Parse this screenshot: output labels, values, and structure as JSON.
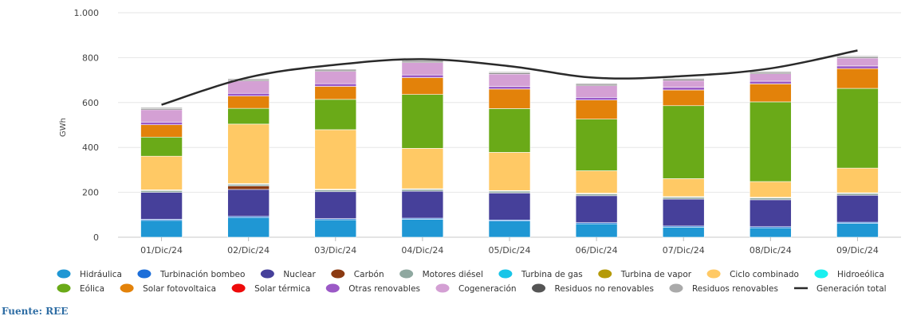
{
  "source_label": "Fuente: REE",
  "chart_data": {
    "type": "bar",
    "stacked": true,
    "ylabel": "GWh",
    "ylim": [
      0,
      1000
    ],
    "yticks": [
      0,
      200,
      400,
      600,
      800,
      1000
    ],
    "ytick_labels": [
      "0",
      "200",
      "400",
      "600",
      "800",
      "1.000"
    ],
    "grid": true,
    "legend_position": "bottom",
    "categories": [
      "01/Dic/24",
      "02/Dic/24",
      "03/Dic/24",
      "04/Dic/24",
      "05/Dic/24",
      "06/Dic/24",
      "07/Dic/24",
      "08/Dic/24",
      "09/Dic/24"
    ],
    "series": [
      {
        "name": "Hidráulica",
        "color": "#1f97d4",
        "values": [
          75,
          88,
          78,
          80,
          72,
          60,
          45,
          42,
          62
        ]
      },
      {
        "name": "Turbinación bombeo",
        "color": "#1c6ed9",
        "values": [
          5,
          5,
          5,
          5,
          5,
          5,
          5,
          5,
          5
        ]
      },
      {
        "name": "Nuclear",
        "color": "#46409a",
        "values": [
          120,
          120,
          120,
          120,
          120,
          120,
          120,
          120,
          120
        ]
      },
      {
        "name": "Carbón",
        "color": "#8b3a12",
        "values": [
          0,
          15,
          0,
          0,
          0,
          0,
          0,
          0,
          0
        ]
      },
      {
        "name": "Motores diésel",
        "color": "#8fa8a0",
        "values": [
          8,
          8,
          8,
          8,
          8,
          8,
          8,
          8,
          8
        ]
      },
      {
        "name": "Turbina de gas",
        "color": "#18c5e8",
        "values": [
          1,
          1,
          1,
          1,
          1,
          1,
          1,
          1,
          1
        ]
      },
      {
        "name": "Turbina de vapor",
        "color": "#b59a08",
        "values": [
          2,
          2,
          2,
          2,
          2,
          2,
          2,
          2,
          2
        ]
      },
      {
        "name": "Ciclo combinado",
        "color": "#ffc965",
        "values": [
          150,
          265,
          265,
          180,
          170,
          100,
          80,
          70,
          110
        ]
      },
      {
        "name": "Hidroeólica",
        "color": "#19f0f0",
        "values": [
          0,
          0,
          0,
          0,
          0,
          0,
          0,
          0,
          0
        ]
      },
      {
        "name": "Eólica",
        "color": "#6aaa18",
        "values": [
          85,
          70,
          135,
          240,
          195,
          230,
          325,
          355,
          355
        ]
      },
      {
        "name": "Solar fotovoltaica",
        "color": "#e3820a",
        "values": [
          55,
          55,
          58,
          75,
          87,
          85,
          70,
          80,
          88
        ]
      },
      {
        "name": "Solar térmica",
        "color": "#ee0a0a",
        "values": [
          0,
          0,
          0,
          0,
          0,
          0,
          0,
          0,
          0
        ]
      },
      {
        "name": "Otras renovables",
        "color": "#9b59c6",
        "values": [
          12,
          12,
          12,
          12,
          12,
          12,
          12,
          12,
          12
        ]
      },
      {
        "name": "Cogeneración",
        "color": "#d4a0d4",
        "values": [
          55,
          55,
          55,
          55,
          55,
          52,
          30,
          33,
          35
        ]
      },
      {
        "name": "Residuos no renovables",
        "color": "#555555",
        "values": [
          5,
          5,
          5,
          5,
          5,
          5,
          5,
          5,
          5
        ]
      },
      {
        "name": "Residuos renovables",
        "color": "#aaaaaa",
        "values": [
          5,
          5,
          5,
          5,
          5,
          5,
          5,
          5,
          5
        ]
      }
    ],
    "line_series": {
      "name": "Generación total",
      "color": "#2a2a2a",
      "values": [
        590,
        712,
        768,
        793,
        762,
        710,
        718,
        752,
        832
      ]
    },
    "legend_rows": [
      [
        "Hidráulica",
        "Turbinación bombeo",
        "Nuclear",
        "Carbón",
        "Motores diésel",
        "Turbina de gas",
        "Turbina de vapor",
        "Ciclo combinado",
        "Hidroeólica"
      ],
      [
        "Eólica",
        "Solar fotovoltaica",
        "Solar térmica",
        "Otras renovables",
        "Cogeneración",
        "Residuos no renovables",
        "Residuos renovables",
        "Generación total"
      ]
    ]
  }
}
